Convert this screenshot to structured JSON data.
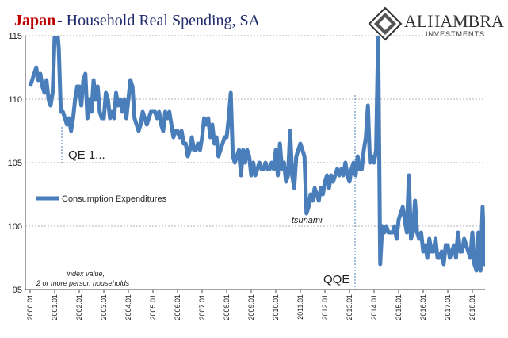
{
  "chart_data": {
    "type": "line",
    "title_highlight": "Japan",
    "title": " - Household Real Spending, SA",
    "brand": "ALHAMBRA",
    "brand_sub": "INVESTMENTS",
    "annotations": [
      "QE 1...",
      "QQE",
      "tsunami"
    ],
    "note": [
      "index value,",
      "2 or more person households"
    ],
    "categories": [
      "2000.01",
      null,
      null,
      null,
      null,
      null,
      null,
      null,
      null,
      null,
      null,
      null,
      "2001.01",
      null,
      null,
      null,
      null,
      null,
      null,
      null,
      null,
      null,
      null,
      null,
      "2002.01",
      null,
      null,
      null,
      null,
      null,
      null,
      null,
      null,
      null,
      null,
      null,
      "2003.01",
      null,
      null,
      null,
      null,
      null,
      null,
      null,
      null,
      null,
      null,
      null,
      "2004.01",
      null,
      null,
      null,
      null,
      null,
      null,
      null,
      null,
      null,
      null,
      null,
      "2005.01",
      null,
      null,
      null,
      null,
      null,
      null,
      null,
      null,
      null,
      null,
      null,
      "2006.01",
      null,
      null,
      null,
      null,
      null,
      null,
      null,
      null,
      null,
      null,
      null,
      "2007.01",
      null,
      null,
      null,
      null,
      null,
      null,
      null,
      null,
      null,
      null,
      null,
      "2008.01",
      null,
      null,
      null,
      null,
      null,
      null,
      null,
      null,
      null,
      null,
      null,
      "2009.01",
      null,
      null,
      null,
      null,
      null,
      null,
      null,
      null,
      null,
      null,
      null,
      "2010.01",
      null,
      null,
      null,
      null,
      null,
      null,
      null,
      null,
      null,
      null,
      null,
      "2011.01",
      null,
      null,
      null,
      null,
      null,
      null,
      null,
      null,
      null,
      null,
      null,
      "2012.01",
      null,
      null,
      null,
      null,
      null,
      null,
      null,
      null,
      null,
      null,
      null,
      "2013.01",
      null,
      null,
      null,
      null,
      null,
      null,
      null,
      null,
      null,
      null,
      null,
      "2014.01",
      null,
      null,
      null,
      null,
      null,
      null,
      null,
      null,
      null,
      null,
      null,
      "2015.01",
      null,
      null,
      null,
      null,
      null,
      null,
      null,
      null,
      null,
      null,
      null,
      "2016.01",
      null,
      null,
      null,
      null,
      null,
      null,
      null,
      null,
      null,
      null,
      null,
      "2017.01",
      null,
      null,
      null,
      null,
      null,
      null,
      null,
      null,
      null,
      null,
      null,
      "2018.01",
      null,
      null,
      null,
      null,
      null,
      null,
      null
    ],
    "series": [
      {
        "name": "Consumption Expenditures",
        "color": "#4a7ebb",
        "values": [
          111,
          111.5,
          112,
          112.5,
          111.5,
          112,
          111,
          110.5,
          111.5,
          110,
          109.5,
          110.5,
          115,
          116,
          114,
          109,
          109,
          108.5,
          108,
          108.5,
          107.5,
          108.5,
          110,
          111,
          111,
          109.5,
          111.5,
          112,
          108.5,
          110,
          109,
          111.5,
          110,
          111,
          109,
          108.5,
          108.5,
          110.5,
          110,
          108.5,
          109,
          108.5,
          110.5,
          109.5,
          110,
          109,
          110,
          108.5,
          110,
          111.5,
          111,
          108.5,
          108,
          107.5,
          108,
          109,
          108.5,
          108,
          108.5,
          109,
          109,
          109,
          108.5,
          109,
          108,
          107.5,
          109,
          108.5,
          109,
          108,
          107,
          107.5,
          107.5,
          107,
          107.5,
          106.5,
          106.5,
          105.5,
          106,
          107,
          106,
          106,
          106.5,
          106,
          107,
          108.5,
          108,
          108.5,
          107,
          108,
          106.5,
          107,
          105.5,
          106,
          106.5,
          107,
          107,
          108.5,
          110.5,
          105.5,
          105,
          105.5,
          106,
          104,
          106,
          105,
          106,
          105.5,
          104,
          105,
          104,
          104.5,
          105,
          104.5,
          104.5,
          105,
          104.5,
          104.5,
          105,
          104.5,
          106,
          104,
          106.5,
          104.5,
          105,
          103.5,
          104,
          107.5,
          104,
          103,
          105.5,
          106,
          106.5,
          106,
          105.5,
          101,
          101.5,
          102.5,
          102,
          103,
          102.5,
          102,
          103,
          102.5,
          103.5,
          104,
          103,
          104,
          103.5,
          104,
          104.5,
          104,
          104.5,
          104,
          105,
          104,
          103.5,
          104.5,
          105,
          104,
          105.5,
          104.5,
          104.5,
          106,
          107,
          109.5,
          105,
          105.5,
          105,
          106,
          115,
          97,
          100,
          99.5,
          100,
          99.5,
          99.5,
          99.5,
          100,
          99,
          100.5,
          101,
          101.5,
          100.5,
          99.5,
          104,
          99,
          99.5,
          102,
          99.5,
          99,
          99.5,
          98,
          98.5,
          97.5,
          99,
          98,
          98,
          99,
          97.5,
          97.5,
          98,
          97,
          98.5,
          98.5,
          97.5,
          98,
          98.5,
          97.5,
          99.5,
          98,
          98,
          99,
          98.5,
          98,
          97.5,
          99.5,
          97,
          96.5,
          99.5,
          96.5,
          101.5,
          97,
          98.5
        ]
      }
    ],
    "ylim": [
      95,
      115
    ],
    "yticks": [
      95,
      100,
      105,
      110,
      115
    ],
    "grid": true
  }
}
